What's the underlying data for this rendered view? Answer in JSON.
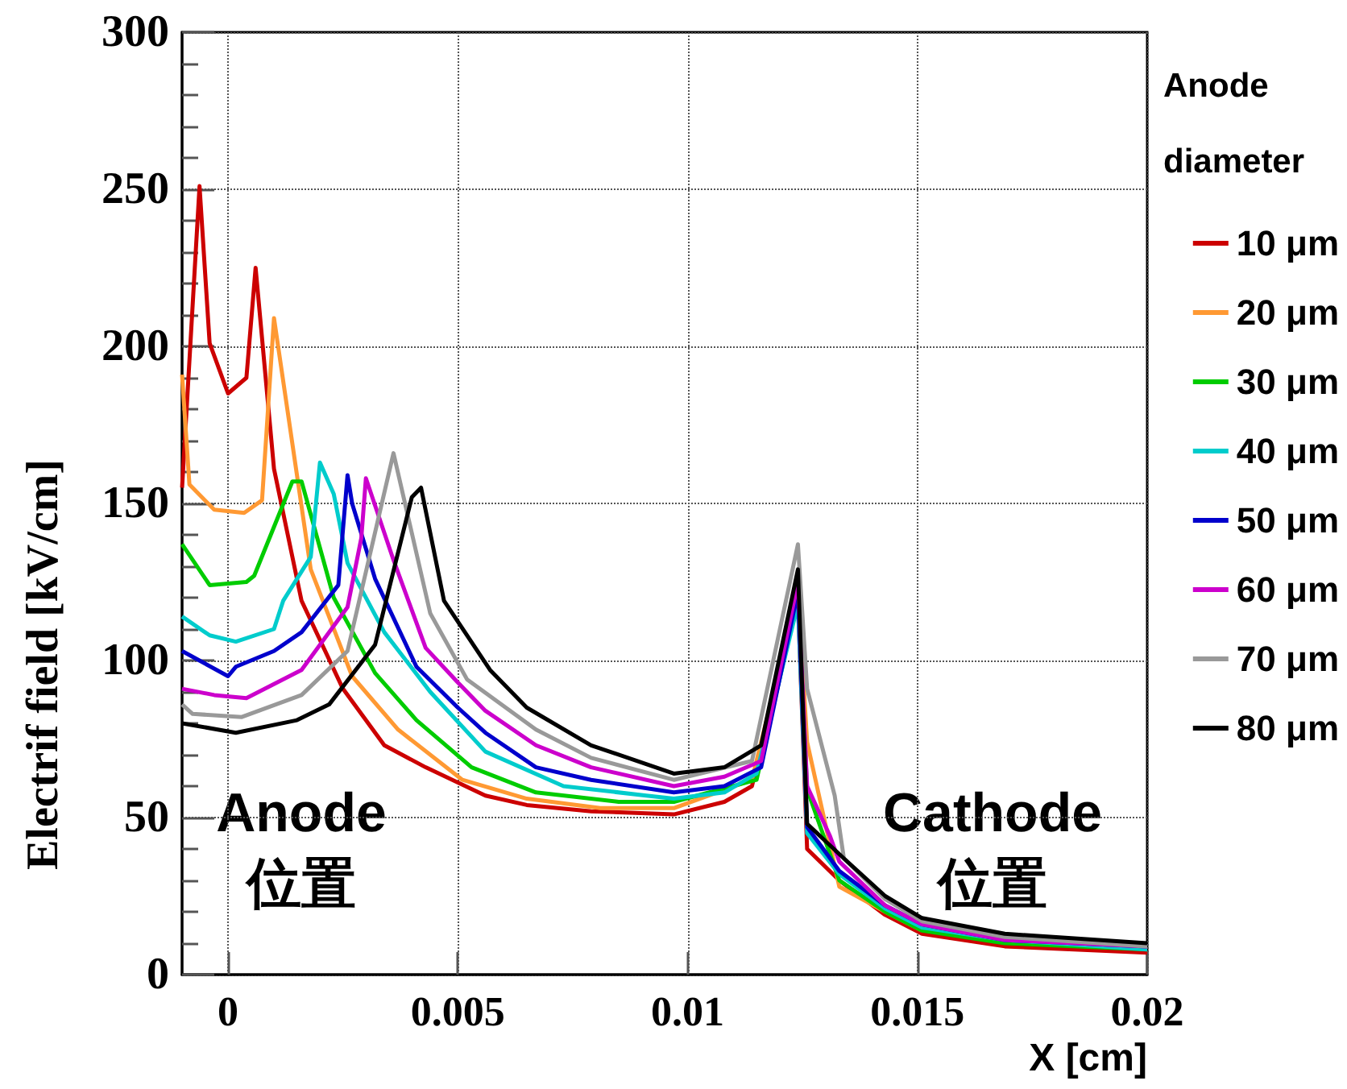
{
  "chart_data": {
    "type": "line",
    "xlabel": "X [cm]",
    "ylabel": "Electrif field [kV/cm]",
    "legend_title": "Anode diameter",
    "legend": "right",
    "grid": true,
    "marker": "none",
    "line_style": "solid",
    "xlim": [
      -0.001,
      0.02
    ],
    "xticks": [
      0,
      0.005,
      0.01,
      0.015,
      0.02
    ],
    "ylim": [
      0,
      300
    ],
    "yticks": [
      0,
      50,
      100,
      150,
      200,
      250,
      300
    ],
    "annotations": [
      "Anode\n位置",
      "Cathode\n位置"
    ],
    "series": [
      {
        "name": "10 μm",
        "color": "#cc0000",
        "x": [
          -0.001,
          -0.00062,
          -0.0004,
          0,
          0.0004,
          0.0006,
          0.001,
          0.0016,
          0.0025,
          0.0034,
          0.0043,
          0.0056,
          0.0065,
          0.0079,
          0.0097,
          0.0108,
          0.0114,
          0.0124,
          0.0126,
          0.0133,
          0.0143,
          0.0151,
          0.0169,
          0.02
        ],
        "values": [
          155,
          251,
          201,
          185,
          190,
          225,
          161,
          119,
          91,
          73,
          66,
          57,
          54,
          52,
          51,
          55,
          60,
          119,
          40,
          30,
          19,
          13,
          9,
          7
        ]
      },
      {
        "name": "20 μm",
        "color": "#ff9933",
        "x": [
          -0.001,
          -0.00084,
          -0.0003,
          0.00035,
          0.00074,
          0.001,
          0.0018,
          0.0027,
          0.0037,
          0.0051,
          0.0065,
          0.0081,
          0.0097,
          0.0114,
          0.0124,
          0.0126,
          0.0133,
          0.0143,
          0.0151
        ],
        "values": [
          191,
          156,
          148,
          147,
          151,
          209,
          129,
          95,
          78,
          62,
          56,
          53,
          53,
          62,
          122,
          74,
          28,
          20,
          14
        ]
      },
      {
        "name": "30 μm",
        "color": "#00cc00",
        "x": [
          -0.001,
          -0.0004,
          0.0004,
          0.00057,
          0.0014,
          0.0016,
          0.0023,
          0.0032,
          0.0041,
          0.0053,
          0.0067,
          0.0085,
          0.0097,
          0.0115,
          0.0124,
          0.0126,
          0.0133,
          0.0143,
          0.0151,
          0.0169,
          0.02
        ],
        "values": [
          137,
          124,
          125,
          127,
          157,
          157,
          120,
          96,
          81,
          66,
          58,
          55,
          55,
          62,
          120,
          59,
          30,
          20,
          14,
          10,
          8
        ]
      },
      {
        "name": "40 μm",
        "color": "#00cccc",
        "x": [
          -0.001,
          -0.0004,
          0.00017,
          0.001,
          0.0012,
          0.0018,
          0.002,
          0.0023,
          0.0026,
          0.0034,
          0.0044,
          0.0056,
          0.0073,
          0.0091,
          0.0097,
          0.0108,
          0.0115,
          0.0124,
          0.0126,
          0.0133,
          0.0143,
          0.0151,
          0.0169,
          0.02
        ],
        "values": [
          114,
          108,
          106,
          110,
          119,
          133,
          163,
          153,
          131,
          109,
          90,
          71,
          60,
          57,
          56,
          58,
          64,
          118,
          45,
          32,
          21,
          15,
          11,
          8
        ]
      },
      {
        "name": "50 μm",
        "color": "#0000cc",
        "x": [
          -0.001,
          0,
          0.00017,
          0.001,
          0.0016,
          0.0024,
          0.0026,
          0.0027,
          0.0032,
          0.0041,
          0.005,
          0.0056,
          0.0067,
          0.0079,
          0.0097,
          0.0108,
          0.0116,
          0.0124,
          0.0126,
          0.0133,
          0.0143,
          0.0151,
          0.0169,
          0.02
        ],
        "values": [
          103,
          95,
          98,
          103,
          109,
          124,
          159,
          150,
          126,
          98,
          85,
          77,
          66,
          62,
          58,
          60,
          66,
          122,
          47,
          33,
          22,
          16,
          11,
          9
        ]
      },
      {
        "name": "60 μm",
        "color": "#cc00cc",
        "x": [
          -0.001,
          -0.0003,
          0.0004,
          0.0016,
          0.0026,
          0.0029,
          0.003,
          0.0036,
          0.0043,
          0.005,
          0.0056,
          0.0067,
          0.0079,
          0.0097,
          0.0108,
          0.0116,
          0.0124,
          0.0126,
          0.0131,
          0.0133,
          0.0143,
          0.0151,
          0.0169,
          0.02
        ],
        "values": [
          91,
          89,
          88,
          97,
          117,
          139,
          158,
          132,
          104,
          93,
          84,
          73,
          66,
          60,
          63,
          68,
          125,
          60,
          44,
          36,
          22,
          16,
          11,
          9
        ]
      },
      {
        "name": "70 μm",
        "color": "#999999",
        "x": [
          -0.001,
          -0.00077,
          0.0003,
          0.0016,
          0.0026,
          0.0036,
          0.0044,
          0.0052,
          0.0067,
          0.0079,
          0.0097,
          0.0114,
          0.0124,
          0.0126,
          0.0132,
          0.0134,
          0.0143,
          0.0151,
          0.0169,
          0.02
        ],
        "values": [
          86,
          83,
          82,
          89,
          103,
          166,
          115,
          94,
          78,
          69,
          62,
          68,
          137,
          91,
          57,
          37,
          24,
          17,
          12,
          9
        ]
      },
      {
        "name": "80 μm",
        "color": "#000000",
        "x": [
          -0.001,
          0.00017,
          0.0015,
          0.0022,
          0.0032,
          0.004,
          0.0042,
          0.0047,
          0.0057,
          0.0065,
          0.0079,
          0.0097,
          0.0108,
          0.0116,
          0.0124,
          0.0126,
          0.0134,
          0.0143,
          0.0151,
          0.0169,
          0.02
        ],
        "values": [
          80,
          77,
          81,
          86,
          105,
          152,
          155,
          119,
          97,
          85,
          73,
          64,
          66,
          73,
          129,
          48,
          37,
          25,
          18,
          13,
          10
        ]
      }
    ]
  }
}
